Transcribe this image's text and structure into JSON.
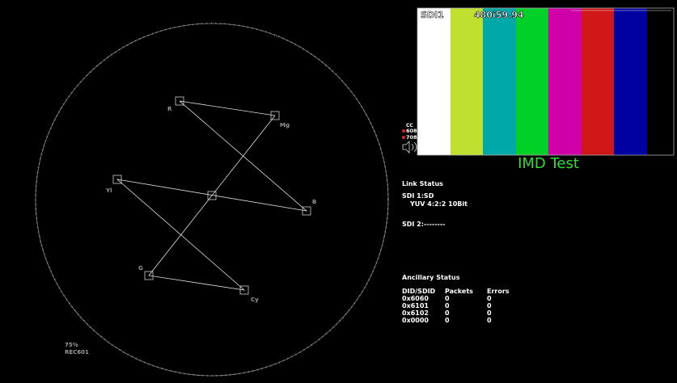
{
  "vectorscope": {
    "targets": [
      "R",
      "Mg",
      "B",
      "Cy",
      "G",
      "Yl"
    ],
    "scale": "75%",
    "standard": "REC601"
  },
  "picture": {
    "input": "SDI1",
    "format": "480i59.94",
    "caption": "IMD Test",
    "cc": {
      "title": "CC",
      "items": [
        "608",
        "708"
      ]
    }
  },
  "link_status": {
    "title": "Link Status",
    "sdi1": "SDI 1:SD",
    "sdi1_format": "YUV 4:2:2 10Bit",
    "sdi2": "SDI 2:--------"
  },
  "ancillary_status": {
    "title": "Ancillary Status",
    "header": [
      "DID/SDID",
      "Packets",
      "Errors"
    ],
    "rows": [
      [
        "0x6060",
        "0",
        "0"
      ],
      [
        "0x6101",
        "0",
        "0"
      ],
      [
        "0x6102",
        "0",
        "0"
      ],
      [
        "0x0000",
        "0",
        "0"
      ]
    ]
  }
}
